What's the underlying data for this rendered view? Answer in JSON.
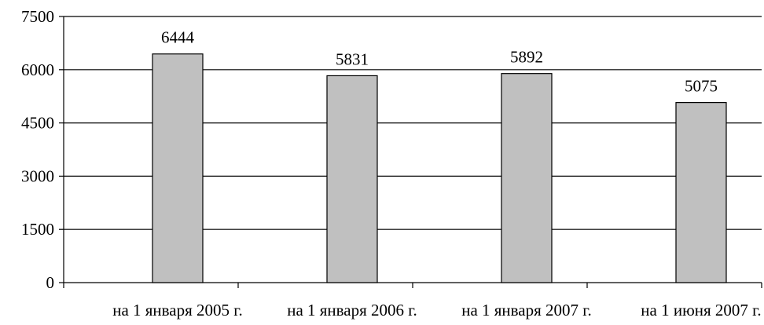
{
  "chart_data": {
    "type": "bar",
    "title": "",
    "xlabel": "",
    "ylabel": "",
    "categories": [
      "на 1 января 2005 г.",
      "на 1 января 2006 г.",
      "на 1 января 2007 г.",
      "на 1 июня 2007 г."
    ],
    "values": [
      6444,
      5831,
      5892,
      5075
    ],
    "data_labels": [
      "6444",
      "5831",
      "5892",
      "5075"
    ],
    "ylim": [
      0,
      7500
    ],
    "yticks": [
      0,
      1500,
      3000,
      4500,
      6000,
      7500
    ],
    "ytick_labels": [
      "0",
      "1500",
      "3000",
      "4500",
      "6000",
      "7500"
    ],
    "grid": true,
    "legend": "none",
    "colors": {
      "bar_fill": "#c0c0c0",
      "bar_stroke": "#000000",
      "grid": "#000000",
      "axis": "#000000"
    }
  }
}
